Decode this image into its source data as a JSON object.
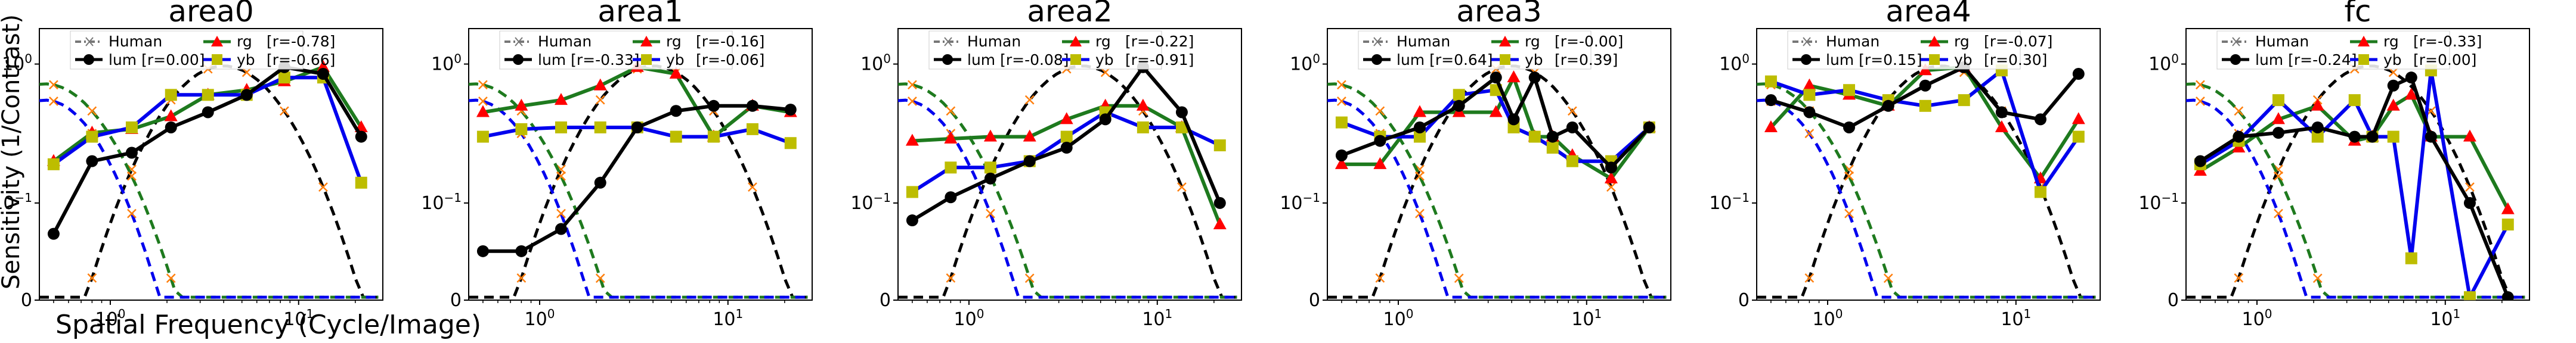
{
  "figure": {
    "ylabel": "Sensitivity (1/Contrast)",
    "xlabel": "Spatial Frequency (Cycle/Image)",
    "x_tick_labels": [
      "10^0",
      "10^1"
    ],
    "y_tick_labels": [
      "10^0",
      "10^-1",
      "0"
    ]
  },
  "series_style": {
    "human": {
      "color": "#000000",
      "label": "Human",
      "marker": "x",
      "line": "dashdot-gray"
    },
    "lum": {
      "color": "#000000",
      "marker": "circle"
    },
    "rg": {
      "color": "#1e7a1e",
      "marker": "triangle",
      "marker_color": "#ff0000"
    },
    "yb": {
      "color": "#0000ee",
      "marker": "square",
      "marker_color": "#bdbd00"
    }
  },
  "chart_data": [
    {
      "type": "line",
      "title": "area0",
      "x_scale": "log",
      "y_scale": "log",
      "legend": {
        "lum": "lum [r=0.00]",
        "rg": "rg",
        "rg_r": "[r=-0.78]",
        "yb": "yb",
        "yb_r": "[r=-0.66]"
      },
      "lum_x": [
        0.5,
        0.8,
        1.3,
        2.1,
        3.3,
        5.3,
        8.4,
        13.5,
        21.5
      ],
      "lum_y": [
        0.06,
        0.2,
        0.23,
        0.35,
        0.45,
        0.6,
        0.95,
        0.85,
        0.3
      ],
      "rg_x": [
        0.5,
        0.8,
        1.3,
        2.1,
        3.3,
        5.3,
        8.4,
        13.5,
        21.5
      ],
      "rg_y": [
        0.2,
        0.32,
        0.34,
        0.42,
        0.6,
        0.65,
        0.75,
        0.95,
        0.35
      ],
      "yb_x": [
        0.5,
        0.8,
        1.3,
        2.1,
        3.3,
        5.3,
        8.4,
        13.5,
        21.5
      ],
      "yb_y": [
        0.19,
        0.3,
        0.35,
        0.6,
        0.6,
        0.6,
        0.8,
        0.8,
        0.14
      ]
    },
    {
      "type": "line",
      "title": "area1",
      "x_scale": "log",
      "y_scale": "log",
      "legend": {
        "lum": "lum [r=-0.33]",
        "rg": "rg",
        "rg_r": "[r=-0.16]",
        "yb": "yb",
        "yb_r": "[r=-0.06]"
      },
      "lum_x": [
        0.5,
        0.8,
        1.3,
        2.1,
        3.3,
        5.3,
        8.4,
        13.5,
        21.5
      ],
      "lum_y": [
        0.045,
        0.045,
        0.065,
        0.14,
        0.35,
        0.46,
        0.5,
        0.5,
        0.47
      ],
      "rg_x": [
        0.5,
        0.8,
        1.3,
        2.1,
        3.3,
        5.3,
        8.4,
        13.5,
        21.5
      ],
      "rg_y": [
        0.45,
        0.5,
        0.55,
        0.7,
        0.95,
        0.85,
        0.3,
        0.5,
        0.45
      ],
      "yb_x": [
        0.5,
        0.8,
        1.3,
        2.1,
        3.3,
        5.3,
        8.4,
        13.5,
        21.5
      ],
      "yb_y": [
        0.3,
        0.34,
        0.35,
        0.35,
        0.35,
        0.3,
        0.3,
        0.34,
        0.27
      ]
    },
    {
      "type": "line",
      "title": "area2",
      "x_scale": "log",
      "y_scale": "log",
      "legend": {
        "lum": "lum [r=-0.08]",
        "rg": "rg",
        "rg_r": "[r=-0.22]",
        "yb": "yb",
        "yb_r": "[r=-0.91]"
      },
      "lum_x": [
        0.5,
        0.8,
        1.3,
        2.1,
        3.3,
        5.3,
        8.4,
        13.5,
        21.5
      ],
      "lum_y": [
        0.075,
        0.11,
        0.15,
        0.2,
        0.25,
        0.4,
        0.95,
        0.45,
        0.1
      ],
      "rg_x": [
        0.5,
        0.8,
        1.3,
        2.1,
        3.3,
        5.3,
        8.4,
        13.5,
        21.5
      ],
      "rg_y": [
        0.28,
        0.29,
        0.3,
        0.3,
        0.4,
        0.5,
        0.5,
        0.35,
        0.07
      ],
      "yb_x": [
        0.5,
        0.8,
        1.3,
        2.1,
        3.3,
        5.3,
        8.4,
        13.5,
        21.5
      ],
      "yb_y": [
        0.12,
        0.18,
        0.18,
        0.2,
        0.3,
        0.45,
        0.35,
        0.35,
        0.26
      ]
    },
    {
      "type": "line",
      "title": "area3",
      "x_scale": "log",
      "y_scale": "log",
      "legend": {
        "lum": "lum [r=0.64]",
        "rg": "rg",
        "rg_r": "[r=-0.00]",
        "yb": "yb",
        "yb_r": "[r=0.39]"
      },
      "lum_x": [
        0.5,
        0.8,
        1.3,
        2.1,
        3.3,
        4.1,
        5.3,
        6.6,
        8.4,
        13.5,
        21.5
      ],
      "lum_y": [
        0.22,
        0.28,
        0.35,
        0.5,
        0.8,
        0.4,
        0.8,
        0.3,
        0.35,
        0.18,
        0.35
      ],
      "rg_x": [
        0.5,
        0.8,
        1.3,
        2.1,
        3.3,
        4.1,
        5.3,
        6.6,
        8.4,
        13.5,
        21.5
      ],
      "rg_y": [
        0.19,
        0.19,
        0.45,
        0.45,
        0.45,
        0.8,
        0.3,
        0.3,
        0.22,
        0.15,
        0.35
      ],
      "yb_x": [
        0.5,
        0.8,
        1.3,
        2.1,
        3.3,
        4.1,
        5.3,
        6.6,
        8.4,
        13.5,
        21.5
      ],
      "yb_y": [
        0.38,
        0.3,
        0.3,
        0.6,
        0.65,
        0.35,
        0.3,
        0.25,
        0.2,
        0.2,
        0.35
      ]
    },
    {
      "type": "line",
      "title": "area4",
      "x_scale": "log",
      "y_scale": "log",
      "legend": {
        "lum": "lum [r=0.15]",
        "rg": "rg",
        "rg_r": "[r=-0.07]",
        "yb": "yb",
        "yb_r": "[r=0.30]"
      },
      "lum_x": [
        0.5,
        0.8,
        1.3,
        2.1,
        3.3,
        5.3,
        8.4,
        13.5,
        21.5
      ],
      "lum_y": [
        0.55,
        0.45,
        0.35,
        0.5,
        0.7,
        0.95,
        0.45,
        0.4,
        0.85
      ],
      "rg_x": [
        0.5,
        0.8,
        1.3,
        2.1,
        3.3,
        5.3,
        8.4,
        13.5,
        21.5
      ],
      "rg_y": [
        0.35,
        0.7,
        0.6,
        0.5,
        0.9,
        0.95,
        0.35,
        0.15,
        0.4
      ],
      "yb_x": [
        0.5,
        0.8,
        1.3,
        2.1,
        3.3,
        5.3,
        8.4,
        13.5,
        21.5
      ],
      "yb_y": [
        0.75,
        0.6,
        0.65,
        0.55,
        0.5,
        0.55,
        0.9,
        0.12,
        0.3
      ]
    },
    {
      "type": "line",
      "title": "fc",
      "x_scale": "log",
      "y_scale": "log",
      "legend": {
        "lum": "lum [r=-0.24]",
        "rg": "rg",
        "rg_r": "[r=-0.33]",
        "yb": "yb",
        "yb_r": "[r=0.00]"
      },
      "lum_x": [
        0.5,
        0.8,
        1.3,
        2.1,
        3.3,
        4.1,
        5.3,
        6.6,
        8.4,
        13.5,
        21.5
      ],
      "lum_y": [
        0.2,
        0.3,
        0.32,
        0.35,
        0.3,
        0.3,
        0.7,
        0.8,
        0.3,
        0.1,
        0.02
      ],
      "rg_x": [
        0.5,
        0.8,
        1.3,
        2.1,
        3.3,
        4.1,
        5.3,
        6.6,
        8.4,
        13.5,
        21.5
      ],
      "rg_y": [
        0.17,
        0.25,
        0.4,
        0.5,
        0.28,
        0.3,
        0.5,
        0.6,
        0.3,
        0.3,
        0.09
      ],
      "yb_x": [
        0.5,
        0.8,
        1.3,
        2.1,
        3.3,
        4.1,
        5.3,
        6.6,
        8.4,
        13.5,
        21.5
      ],
      "yb_y": [
        0.19,
        0.28,
        0.55,
        0.3,
        0.55,
        0.3,
        0.3,
        0.04,
        0.9,
        0.02,
        0.07
      ]
    }
  ]
}
